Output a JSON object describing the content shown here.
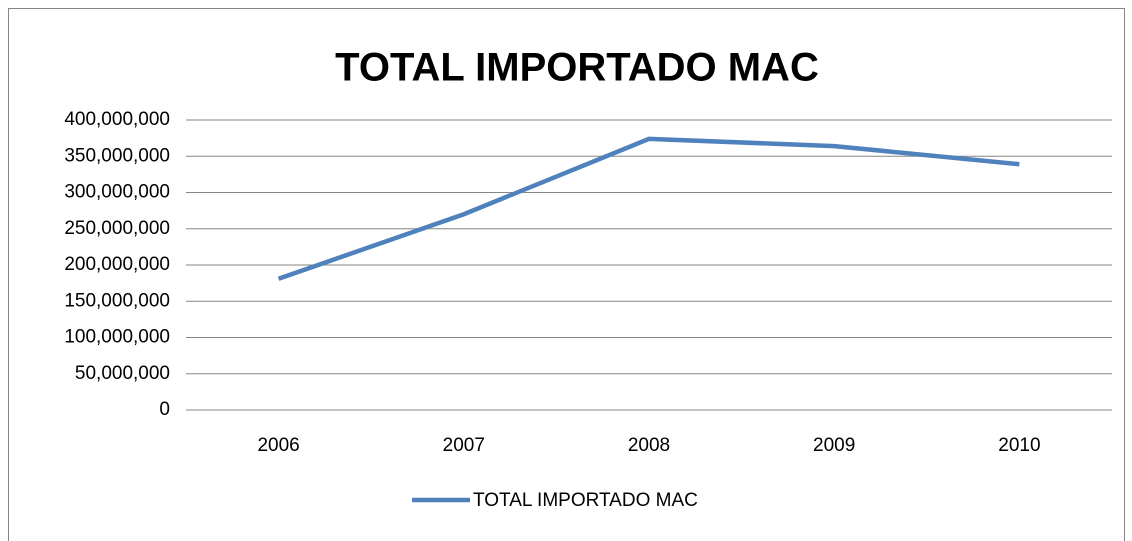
{
  "chart_data": {
    "type": "line",
    "title": "TOTAL IMPORTADO MAC",
    "categories": [
      "2006",
      "2007",
      "2008",
      "2009",
      "2010"
    ],
    "series": [
      {
        "name": "TOTAL IMPORTADO MAC",
        "color": "#4f81bd",
        "values": [
          181000000,
          270000000,
          374000000,
          364000000,
          339000000
        ]
      }
    ],
    "ylim": [
      0,
      400000000
    ],
    "yticks": [
      0,
      {
        "value": 50000000,
        "label": "50,000,000"
      },
      {
        "value": 100000000,
        "label": "100,000,000"
      },
      {
        "value": 150000000,
        "label": "150,000,000"
      },
      {
        "value": 200000000,
        "label": "200,000,000"
      },
      {
        "value": 250000000,
        "label": "250,000,000"
      },
      {
        "value": 300000000,
        "label": "300,000,000"
      },
      {
        "value": 350000000,
        "label": "350,000,000"
      },
      {
        "value": 400000000,
        "label": "400,000,000"
      }
    ],
    "grid": true,
    "legend": "bottom"
  }
}
